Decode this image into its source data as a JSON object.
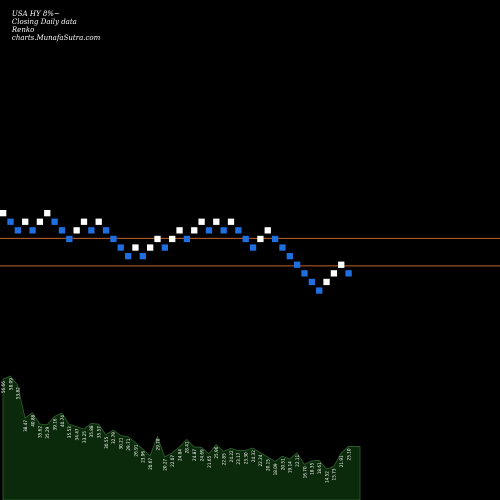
{
  "header": {
    "symbol": "USA HY 8%~",
    "mode": "Closing Daily data",
    "chart_kind": "Renko",
    "site": "charts.MunafaSutra.com"
  },
  "colors": {
    "background": "#000000",
    "up_brick": "#ffffff",
    "down_brick": "#1f6fe0",
    "level_line": "#c0632a",
    "volume_fill": "#0b2a0b",
    "volume_line": "#2f5f2f",
    "volume_label": "#ffffff"
  },
  "chart_data": [
    {
      "type": "renko",
      "y_scale": "price",
      "ylim": [
        0,
        74
      ],
      "bricks": [
        {
          "c": 0,
          "lvl": 68,
          "dir": "up"
        },
        {
          "c": 1,
          "lvl": 67,
          "dir": "down"
        },
        {
          "c": 2,
          "lvl": 66,
          "dir": "down"
        },
        {
          "c": 3,
          "lvl": 67,
          "dir": "up"
        },
        {
          "c": 4,
          "lvl": 66,
          "dir": "down"
        },
        {
          "c": 5,
          "lvl": 67,
          "dir": "up"
        },
        {
          "c": 6,
          "lvl": 68,
          "dir": "up"
        },
        {
          "c": 7,
          "lvl": 67,
          "dir": "down"
        },
        {
          "c": 8,
          "lvl": 66,
          "dir": "down"
        },
        {
          "c": 9,
          "lvl": 65,
          "dir": "down"
        },
        {
          "c": 10,
          "lvl": 66,
          "dir": "up"
        },
        {
          "c": 11,
          "lvl": 67,
          "dir": "up"
        },
        {
          "c": 12,
          "lvl": 66,
          "dir": "down"
        },
        {
          "c": 13,
          "lvl": 67,
          "dir": "up"
        },
        {
          "c": 14,
          "lvl": 66,
          "dir": "down"
        },
        {
          "c": 15,
          "lvl": 65,
          "dir": "down"
        },
        {
          "c": 16,
          "lvl": 64,
          "dir": "down"
        },
        {
          "c": 17,
          "lvl": 63,
          "dir": "down"
        },
        {
          "c": 18,
          "lvl": 64,
          "dir": "up"
        },
        {
          "c": 19,
          "lvl": 63,
          "dir": "down"
        },
        {
          "c": 20,
          "lvl": 64,
          "dir": "up"
        },
        {
          "c": 21,
          "lvl": 65,
          "dir": "up"
        },
        {
          "c": 22,
          "lvl": 64,
          "dir": "down"
        },
        {
          "c": 23,
          "lvl": 65,
          "dir": "up"
        },
        {
          "c": 24,
          "lvl": 66,
          "dir": "up"
        },
        {
          "c": 25,
          "lvl": 65,
          "dir": "down"
        },
        {
          "c": 26,
          "lvl": 66,
          "dir": "up"
        },
        {
          "c": 27,
          "lvl": 67,
          "dir": "up"
        },
        {
          "c": 28,
          "lvl": 66,
          "dir": "down"
        },
        {
          "c": 29,
          "lvl": 67,
          "dir": "up"
        },
        {
          "c": 30,
          "lvl": 66,
          "dir": "down"
        },
        {
          "c": 31,
          "lvl": 67,
          "dir": "up"
        },
        {
          "c": 32,
          "lvl": 66,
          "dir": "down"
        },
        {
          "c": 33,
          "lvl": 65,
          "dir": "down"
        },
        {
          "c": 34,
          "lvl": 64,
          "dir": "down"
        },
        {
          "c": 35,
          "lvl": 65,
          "dir": "up"
        },
        {
          "c": 36,
          "lvl": 66,
          "dir": "up"
        },
        {
          "c": 37,
          "lvl": 65,
          "dir": "down"
        },
        {
          "c": 38,
          "lvl": 64,
          "dir": "down"
        },
        {
          "c": 39,
          "lvl": 63,
          "dir": "down"
        },
        {
          "c": 40,
          "lvl": 62,
          "dir": "down"
        },
        {
          "c": 41,
          "lvl": 61,
          "dir": "down"
        },
        {
          "c": 42,
          "lvl": 60,
          "dir": "down"
        },
        {
          "c": 43,
          "lvl": 59,
          "dir": "down"
        },
        {
          "c": 44,
          "lvl": 60,
          "dir": "up"
        },
        {
          "c": 45,
          "lvl": 61,
          "dir": "up"
        },
        {
          "c": 46,
          "lvl": 62,
          "dir": "up"
        },
        {
          "c": 47,
          "lvl": 61,
          "dir": "down"
        }
      ],
      "reference_levels": [
        65.2,
        62.0
      ]
    },
    {
      "type": "area",
      "series_label_role": "volume",
      "ylim": [
        0,
        75
      ],
      "labels": [
        "56.66",
        "58.09",
        "53.82",
        "38.47",
        "40.88",
        "35.62",
        "35.29",
        "39.16",
        "40.74",
        "35.53",
        "34.47",
        "33.25",
        "35.88",
        "35.57",
        "30.55",
        "32.79",
        "30.21",
        "29.71",
        "26.91",
        "23.96",
        "20.67",
        "29.78",
        "20.27",
        "22.07",
        "24.84",
        "28.41",
        "24.87",
        "24.69",
        "21.65",
        "25.96",
        "22.85",
        "24.22",
        "23.17",
        "23.30",
        "24.32",
        "22.24",
        "20.15",
        "18.09",
        "20.51",
        "19.14",
        "22.11",
        "16.70",
        "18.35",
        "18.61",
        "14.52",
        "15.73",
        "21.91",
        "25.10"
      ],
      "values": [
        56.66,
        58.09,
        53.82,
        38.47,
        40.88,
        35.62,
        35.29,
        39.16,
        40.74,
        35.53,
        34.47,
        33.25,
        35.88,
        35.57,
        30.55,
        32.79,
        30.21,
        29.71,
        26.91,
        23.96,
        20.67,
        29.78,
        20.27,
        22.07,
        24.84,
        28.41,
        24.87,
        24.69,
        21.65,
        25.96,
        22.85,
        24.22,
        23.17,
        23.3,
        24.32,
        22.24,
        20.15,
        18.09,
        20.51,
        19.14,
        22.11,
        16.7,
        18.35,
        18.61,
        14.52,
        15.73,
        21.91,
        25.1
      ]
    }
  ]
}
